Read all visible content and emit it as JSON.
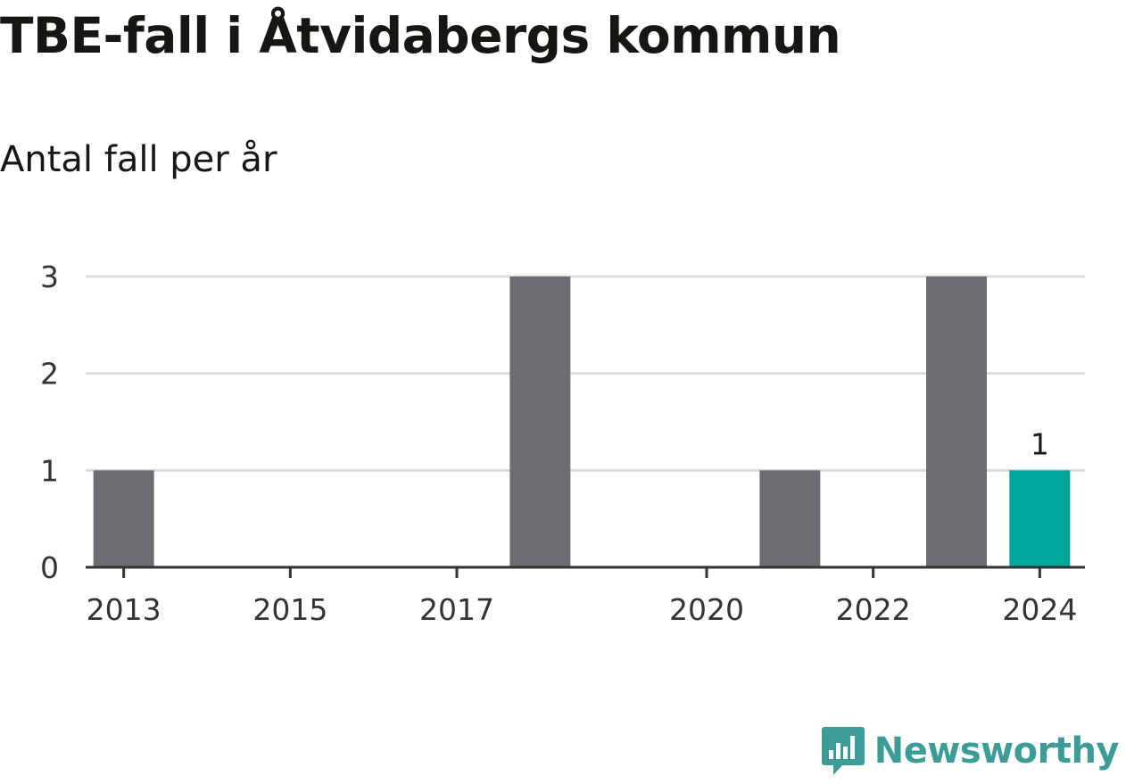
{
  "title": "TBE-fall i Åtvidabergs kommun",
  "subtitle": "Antal fall per år",
  "chart_data": {
    "type": "bar",
    "title": "TBE-fall i Åtvidabergs kommun",
    "subtitle": "Antal fall per år",
    "categories": [
      "2013",
      "2014",
      "2015",
      "2016",
      "2017",
      "2018",
      "2019",
      "2020",
      "2021",
      "2022",
      "2023",
      "2024"
    ],
    "values": [
      1,
      0,
      0,
      0,
      0,
      3,
      0,
      0,
      1,
      0,
      3,
      1
    ],
    "x_tick_labels": [
      "2013",
      "2015",
      "2017",
      "2020",
      "2022",
      "2024"
    ],
    "y_ticks": [
      0,
      1,
      2,
      3
    ],
    "ylim": [
      0,
      3
    ],
    "xlabel": "",
    "ylabel": "",
    "grid": true,
    "colors": {
      "default_bar": "#6d6c72",
      "highlight_bar": "#00a59b",
      "gridline": "#dcdcdc",
      "axis": "#333333"
    },
    "highlight_category": "2024",
    "data_labels": [
      {
        "category": "2024",
        "text": "1"
      }
    ]
  },
  "logo": {
    "text": "Newsworthy",
    "icon": "newsworthy-chat-bars-icon",
    "color": "#3e9c98"
  }
}
